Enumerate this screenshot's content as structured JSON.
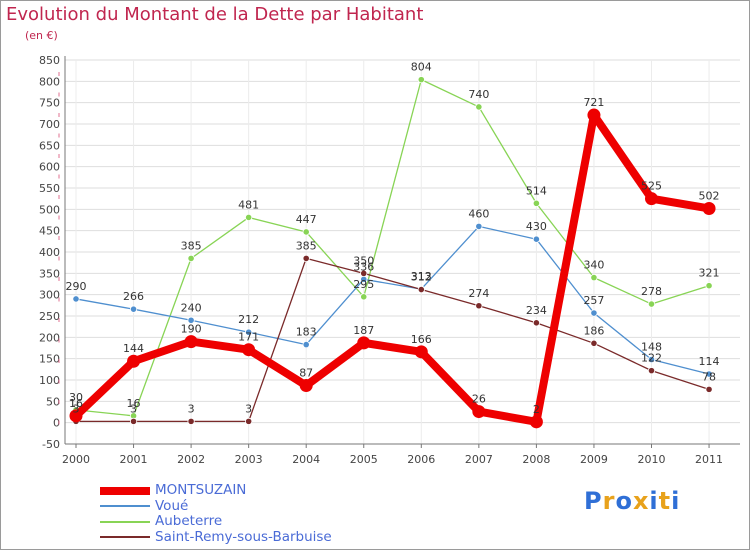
{
  "chart_data": {
    "type": "line",
    "title": "Evolution du Montant de la Dette par Habitant",
    "unit_label": "(en €)",
    "categories": [
      "2000",
      "2001",
      "2002",
      "2003",
      "2004",
      "2005",
      "2006",
      "2007",
      "2008",
      "2009",
      "2010",
      "2011"
    ],
    "ylim": [
      -50,
      850
    ],
    "yticks": [
      -50,
      0,
      50,
      100,
      150,
      200,
      250,
      300,
      350,
      400,
      450,
      500,
      550,
      600,
      650,
      700,
      750,
      800,
      850
    ],
    "grid": true,
    "legend_position": "bottom-left",
    "series": [
      {
        "name": "MONTSUZAIN",
        "color": "#ee0000",
        "values": [
          16,
          144,
          190,
          171,
          87,
          187,
          166,
          26,
          2,
          721,
          525,
          502
        ]
      },
      {
        "name": "Voué",
        "color": "#4f8fcf",
        "values": [
          290,
          266,
          240,
          212,
          183,
          336,
          313,
          460,
          430,
          257,
          148,
          114
        ]
      },
      {
        "name": "Aubeterre",
        "color": "#88d455",
        "values": [
          30,
          16,
          385,
          481,
          447,
          295,
          804,
          740,
          514,
          340,
          278,
          321
        ]
      },
      {
        "name": "Saint-Remy-sous-Barbuise",
        "color": "#7a2a2a",
        "values": [
          3,
          3,
          3,
          3,
          385,
          350,
          312,
          274,
          234,
          186,
          122,
          78
        ]
      }
    ],
    "data_labels": [
      [
        "16",
        "144",
        "190",
        "171",
        "87",
        "187",
        "166",
        "26",
        "2",
        "721",
        "525",
        "502"
      ],
      [
        "290",
        "266",
        "240",
        "212",
        "183",
        "336",
        "313",
        "460",
        "430",
        "257",
        "148",
        "114"
      ],
      [
        "30",
        "16",
        "385",
        "481",
        "447",
        "295",
        "804",
        "740",
        "514",
        "340",
        "278",
        "321"
      ],
      [
        "3",
        "3",
        "3",
        "3",
        "385",
        "350",
        "312",
        "274",
        "234",
        "186",
        "122",
        "78"
      ]
    ]
  },
  "logo": {
    "text": "Proxiti",
    "letter_colors": [
      "#2f6fd6",
      "#e8a21c",
      "#2f6fd6",
      "#e8a21c",
      "#2f6fd6",
      "#e8a21c",
      "#2f6fd6"
    ]
  }
}
